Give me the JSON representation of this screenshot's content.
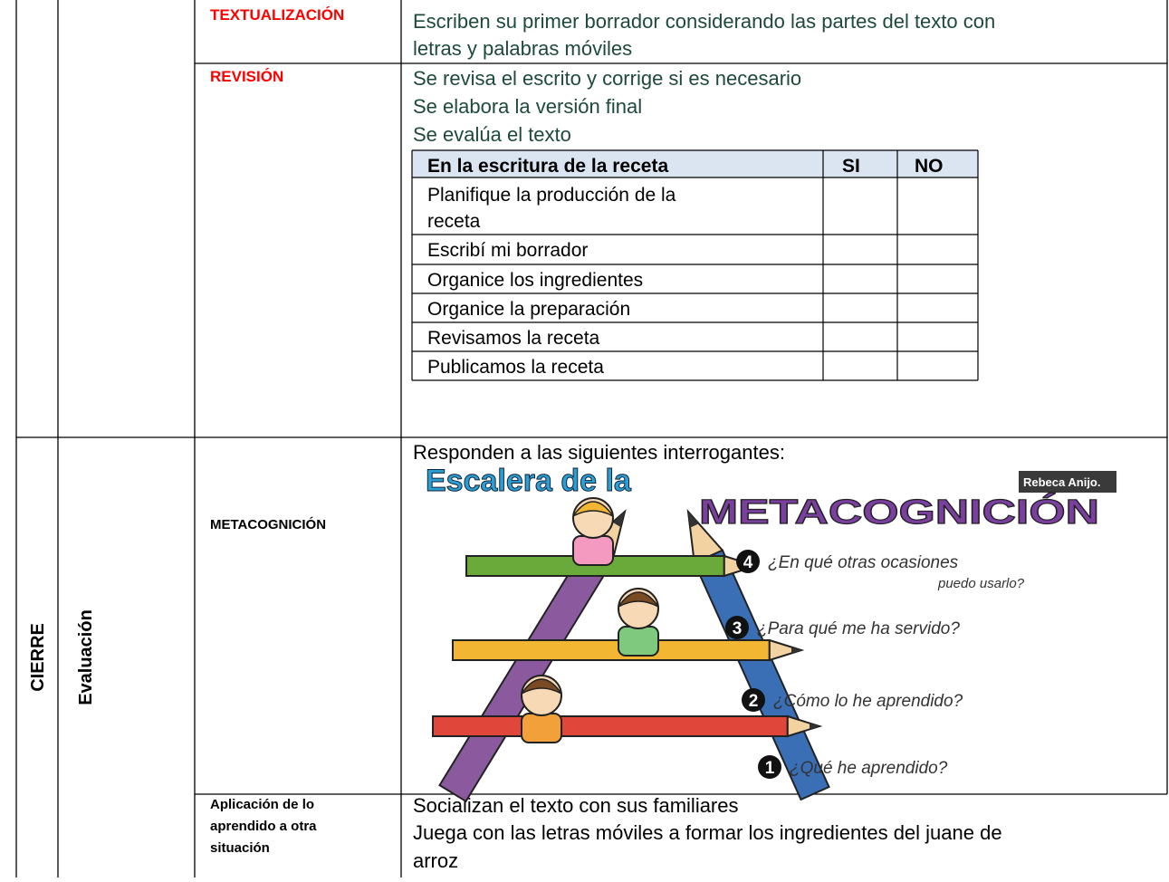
{
  "section": "CIERRE",
  "phase": "Evaluación",
  "rows": [
    {
      "label": [
        "TEXTUALIZACIÓN"
      ],
      "lines": [
        "Escriben su primer borrador considerando las partes del texto con",
        "letras y palabras móviles"
      ]
    },
    {
      "label": [
        "REVISIÓN"
      ],
      "lines": [
        "Se revisa el escrito y corrige si es necesario",
        "Se elabora la versión final",
        "Se evalúa el texto"
      ],
      "checklist": {
        "header": [
          "En la escritura de la receta",
          "SI",
          "NO"
        ],
        "items": [
          [
            "Planifique la producción de la",
            "receta"
          ],
          [
            "Escribí mi borrador"
          ],
          [
            "Organice los ingredientes"
          ],
          [
            "Organice la preparación"
          ],
          [
            "Revisamos la receta"
          ],
          [
            "Publicamos la receta"
          ]
        ]
      }
    },
    {
      "label": [
        "METACOGNICIÓN"
      ],
      "lines": [
        "Responden a las siguientes interrogantes:"
      ],
      "image": {
        "title": "Escalera de la",
        "subtitle": "METACOGNICIÓN",
        "credit": "Rebeca Anijo.",
        "steps": [
          {
            "number": "4",
            "question": [
              "¿En qué otras ocasiones",
              "puedo usarlo?"
            ]
          },
          {
            "number": "3",
            "question": [
              "¿Para qué me ha servido?"
            ]
          },
          {
            "number": "2",
            "question": [
              "¿Cómo lo he aprendido?"
            ]
          },
          {
            "number": "1",
            "question": [
              "¿Qué he aprendido?"
            ]
          }
        ]
      }
    },
    {
      "label": [
        "Aplicación de lo",
        "aprendido a otra",
        "situación"
      ],
      "lines": [
        "Socializan  el texto con sus familiares",
        "Juega con las letras móviles a formar los ingredientes del juane de",
        "arroz"
      ]
    }
  ]
}
